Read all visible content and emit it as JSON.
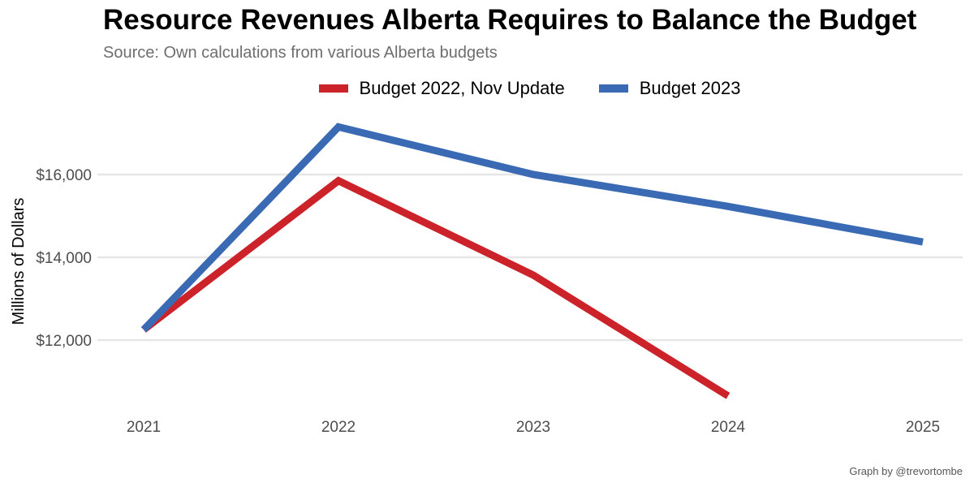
{
  "title": "Resource Revenues Alberta Requires to Balance the Budget",
  "subtitle": "Source: Own calculations from various Alberta budgets",
  "caption": "Graph by @trevortombe",
  "chart_data": {
    "type": "line",
    "title": "Resource Revenues Alberta Requires to Balance the Budget",
    "xlabel": "",
    "ylabel": "Millions of Dollars",
    "x": [
      2021,
      2022,
      2023,
      2024,
      2025
    ],
    "xticks": [
      "2021",
      "2022",
      "2023",
      "2024",
      "2025"
    ],
    "yticks": [
      12000,
      14000,
      16000
    ],
    "ytick_labels": [
      "$12,000",
      "$14,000",
      "$16,000"
    ],
    "xlim": [
      2021,
      2025
    ],
    "ylim": [
      10700,
      17200
    ],
    "grid": true,
    "legend_position": "top",
    "series": [
      {
        "name": "Budget 2022, Nov Update",
        "color": "#cc2229",
        "x": [
          2021,
          2022,
          2023,
          2024
        ],
        "values": [
          12250,
          15850,
          13570,
          10650
        ]
      },
      {
        "name": "Budget 2023",
        "color": "#3a6ab3",
        "x": [
          2021,
          2022,
          2023,
          2024,
          2025
        ],
        "values": [
          12250,
          17150,
          16000,
          15230,
          14370
        ]
      }
    ]
  }
}
